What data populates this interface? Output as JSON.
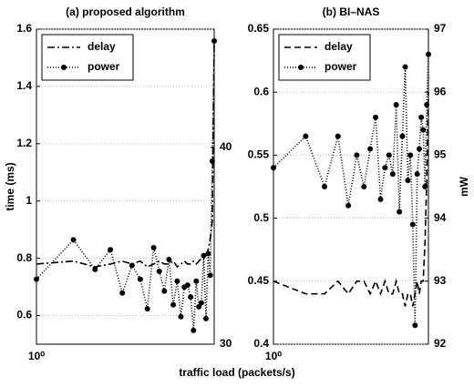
{
  "chart_data": [
    {
      "type": "line",
      "title": "(a) proposed algorithm",
      "ylabel": "time (ms)",
      "xlabel": "traffic load (packets/s)",
      "x": [
        1,
        2,
        3,
        4,
        5,
        6,
        7,
        8,
        9,
        10,
        11,
        12,
        13,
        14,
        15,
        16,
        17,
        18,
        19,
        20,
        21,
        22,
        23,
        24,
        25,
        26,
        27,
        28
      ],
      "xlim": [
        1,
        28
      ],
      "xscale": "log",
      "xticks": [
        {
          "value": 1,
          "label": "10⁰"
        }
      ],
      "ylim": [
        0.5,
        1.6
      ],
      "yticks": [
        0.6,
        0.8,
        {
          "value": 1,
          "label": "1"
        },
        1.2,
        1.4,
        1.6
      ],
      "y2lim": [
        30,
        46
      ],
      "y2ticks": [
        30,
        40
      ],
      "grid": true,
      "legend": "upper left",
      "series": [
        {
          "name": "delay",
          "color": "#000000",
          "dash": "8 3 2 3",
          "marker": false,
          "values": [
            0.78,
            0.79,
            0.77,
            0.78,
            0.79,
            0.78,
            0.79,
            0.77,
            0.78,
            0.79,
            0.78,
            0.78,
            0.79,
            0.77,
            0.78,
            0.79,
            0.78,
            0.78,
            0.79,
            0.78,
            0.79,
            0.8,
            0.8,
            0.81,
            0.83,
            0.87,
            0.93,
            1.55
          ]
        },
        {
          "name": "power",
          "color": "#000000",
          "dash": "1 2",
          "marker": true,
          "axis": "y2",
          "values": [
            33.3,
            35.3,
            33.8,
            34.8,
            32.6,
            34,
            33.3,
            31.8,
            34.9,
            33.7,
            32.7,
            34.3,
            32,
            33.2,
            31.4,
            32.9,
            33,
            32.4,
            30.7,
            33.2,
            31.9,
            32.1,
            34.5,
            31.3,
            34.6,
            33.5,
            39.3,
            45.4
          ]
        }
      ]
    },
    {
      "type": "line",
      "title": "(b) BI–NAS",
      "y2label": "mW",
      "x": [
        1,
        2,
        3,
        4,
        5,
        6,
        7,
        8,
        9,
        10,
        11,
        12,
        13,
        14,
        15,
        16,
        17,
        18,
        19,
        20,
        21,
        22,
        23,
        24,
        25,
        26,
        27,
        28
      ],
      "xlim": [
        1,
        28
      ],
      "xscale": "log",
      "xticks": [
        {
          "value": 1,
          "label": "10⁰"
        }
      ],
      "ylim": [
        0.4,
        0.65
      ],
      "yticks": [
        0.4,
        0.45,
        0.5,
        0.55,
        0.6,
        0.65
      ],
      "y2lim": [
        92,
        97
      ],
      "y2ticks": [
        92,
        93,
        94,
        95,
        96,
        97
      ],
      "grid": true,
      "legend": "upper left",
      "series": [
        {
          "name": "delay",
          "color": "#000000",
          "dash": "7 4",
          "marker": false,
          "values": [
            0.45,
            0.44,
            0.44,
            0.45,
            0.44,
            0.45,
            0.45,
            0.44,
            0.45,
            0.44,
            0.45,
            0.44,
            0.44,
            0.45,
            0.44,
            0.44,
            0.43,
            0.44,
            0.44,
            0.43,
            0.44,
            0.45,
            0.44,
            0.45,
            0.45,
            0.48,
            0.53,
            0.6
          ]
        },
        {
          "name": "power",
          "color": "#000000",
          "dash": "1 2",
          "marker": true,
          "axis": "y2",
          "values": [
            94.8,
            95.3,
            94.5,
            95.3,
            94.2,
            95,
            94.5,
            95.1,
            95.6,
            94.3,
            94.8,
            95,
            94.7,
            95.8,
            94.1,
            95.3,
            96.4,
            94.6,
            95,
            93.9,
            92.3,
            94.7,
            95.1,
            95.6,
            95.4,
            94.5,
            95.8,
            96.6
          ]
        }
      ]
    }
  ]
}
